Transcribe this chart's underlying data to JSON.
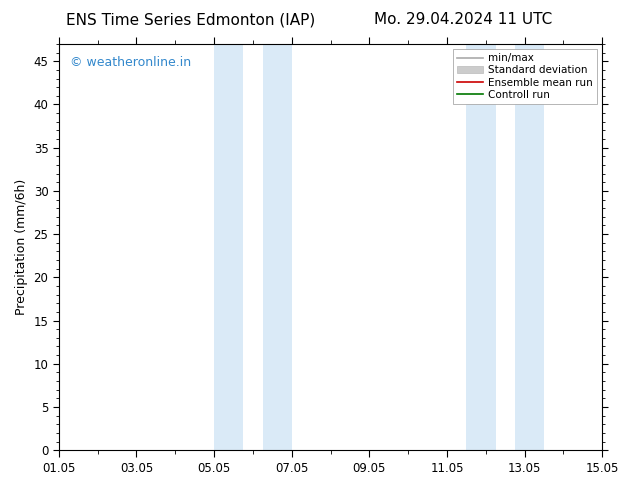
{
  "title_left": "ENS Time Series Edmonton (IAP)",
  "title_right": "Mo. 29.04.2024 11 UTC",
  "ylabel": "Precipitation (mm/6h)",
  "ylim": [
    0,
    47
  ],
  "yticks": [
    0,
    5,
    10,
    15,
    20,
    25,
    30,
    35,
    40,
    45
  ],
  "xlim": [
    0,
    14
  ],
  "xtick_positions": [
    0,
    2,
    4,
    6,
    8,
    10,
    12,
    14
  ],
  "xtick_labels": [
    "01.05",
    "03.05",
    "05.05",
    "07.05",
    "09.05",
    "11.05",
    "13.05",
    "15.05"
  ],
  "shaded_bands": [
    {
      "x_start": 4.0,
      "x_end": 4.75
    },
    {
      "x_start": 5.25,
      "x_end": 6.0
    },
    {
      "x_start": 10.5,
      "x_end": 11.25
    },
    {
      "x_start": 11.75,
      "x_end": 12.5
    }
  ],
  "band_color": "#daeaf7",
  "background_color": "#ffffff",
  "plot_bg_color": "#ffffff",
  "watermark_text": "© weatheronline.in",
  "watermark_color": "#3388cc",
  "legend_entries": [
    {
      "label": "min/max",
      "color": "#aaaaaa",
      "lw": 1.2,
      "style": "-",
      "type": "line"
    },
    {
      "label": "Standard deviation",
      "color": "#cccccc",
      "lw": 8,
      "style": "-",
      "type": "patch"
    },
    {
      "label": "Ensemble mean run",
      "color": "#cc0000",
      "lw": 1.2,
      "style": "-",
      "type": "line"
    },
    {
      "label": "Controll run",
      "color": "#007700",
      "lw": 1.2,
      "style": "-",
      "type": "line"
    }
  ],
  "title_fontsize": 11,
  "tick_fontsize": 8.5,
  "ylabel_fontsize": 9,
  "watermark_fontsize": 9
}
